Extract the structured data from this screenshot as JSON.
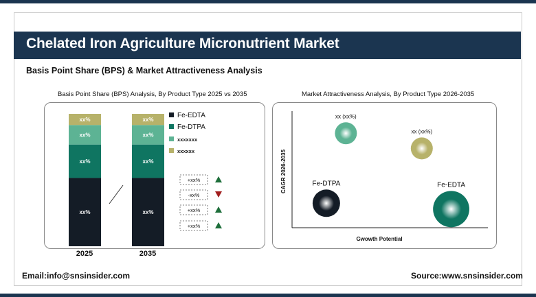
{
  "header": {
    "title": "Chelated Iron Agriculture Micronutrient Market",
    "subtitle": "Basis Point Share (BPS) & Market Attractiveness Analysis"
  },
  "footer": {
    "email": "Email:info@snsinsider.com",
    "source": "Source:www.snsinsider.com"
  },
  "colors": {
    "navy": "#1b3550",
    "fe_edta": "#141c26",
    "fe_dtpa": "#0f7561",
    "seg3": "#5db394",
    "seg4": "#b7b26a",
    "up": "#1d6e3a",
    "down": "#a11d1d"
  },
  "chart_data": [
    {
      "type": "bar",
      "title": "Basis Point Share (BPS) Analysis, By Product Type 2025 vs 2035",
      "stacked": true,
      "categories": [
        "2025",
        "2035"
      ],
      "series": [
        {
          "name": "Fe-EDTA",
          "values": [
            49,
            49
          ],
          "labels": [
            "xx%",
            "xx%"
          ]
        },
        {
          "name": "Fe-DTPA",
          "values": [
            24,
            24
          ],
          "labels": [
            "xx%",
            "xx%"
          ]
        },
        {
          "name": "xxxxxxx",
          "values": [
            14,
            14
          ],
          "labels": [
            "xx%",
            "xx%"
          ]
        },
        {
          "name": "xxxxxx",
          "values": [
            8,
            8
          ],
          "labels": [
            "xx%",
            "xx%"
          ]
        }
      ],
      "changes": [
        {
          "label": "+xx%",
          "direction": "up"
        },
        {
          "label": "-xx%",
          "direction": "down"
        },
        {
          "label": "+xx%",
          "direction": "up"
        },
        {
          "label": "+xx%",
          "direction": "up"
        }
      ]
    },
    {
      "type": "scatter",
      "title": "Market Attractiveness Analysis, By Product Type 2026-2035",
      "xlabel": "Gwowth Potential",
      "ylabel": "CAGR 2026-2035",
      "points": [
        {
          "label": "xx (xx%)",
          "x": 2.2,
          "y": 8.1,
          "size": 1.0,
          "color": "#5db394"
        },
        {
          "label": "xx (xx%)",
          "x": 5.3,
          "y": 6.8,
          "size": 1.0,
          "color": "#b7b26a"
        },
        {
          "label": "Fe-DTPA",
          "x": 1.4,
          "y": 2.1,
          "size": 1.25,
          "color": "#141c26"
        },
        {
          "label": "Fe-EDTA",
          "x": 6.5,
          "y": 1.6,
          "size": 1.65,
          "color": "#0f7561"
        }
      ],
      "xlim": [
        0,
        8
      ],
      "ylim": [
        0,
        10
      ]
    }
  ]
}
